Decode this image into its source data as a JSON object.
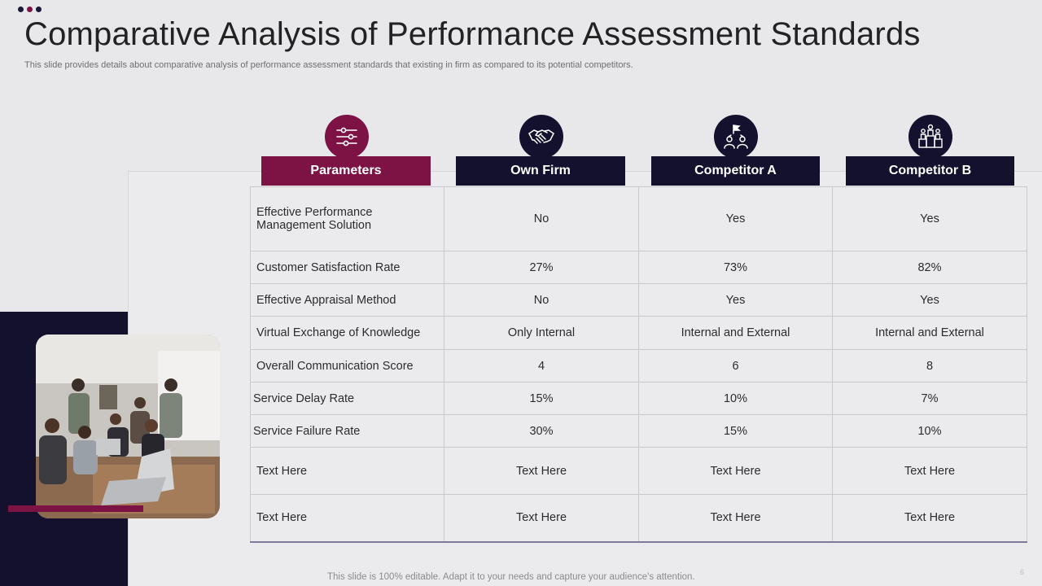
{
  "slide": {
    "title": "Comparative Analysis of Performance Assessment Standards",
    "subtitle": "This slide provides details about comparative analysis of performance assessment standards that existing in firm as compared to its potential competitors.",
    "footer": "This slide is 100% editable. Adapt it to your needs and capture your audience's attention.",
    "page_number": "6"
  },
  "columns": [
    {
      "label": "Parameters",
      "icon": "sliders-icon"
    },
    {
      "label": "Own Firm",
      "icon": "handshake-icon"
    },
    {
      "label": "Competitor A",
      "icon": "team-flag-icon"
    },
    {
      "label": "Competitor B",
      "icon": "podium-people-icon"
    }
  ],
  "rows": [
    {
      "cells": [
        "Effective Performance Management Solution",
        "No",
        "Yes",
        "Yes"
      ]
    },
    {
      "cells": [
        "Customer Satisfaction Rate",
        "27%",
        "73%",
        "82%"
      ]
    },
    {
      "cells": [
        "Effective Appraisal Method",
        "No",
        "Yes",
        "Yes"
      ]
    },
    {
      "cells": [
        "Virtual Exchange of Knowledge",
        "Only Internal",
        "Internal and External",
        "Internal and External"
      ]
    },
    {
      "cells": [
        "Overall Communication Score",
        "4",
        "6",
        "8"
      ]
    },
    {
      "cells": [
        "Service Delay Rate",
        "15%",
        "10%",
        "7%"
      ]
    },
    {
      "cells": [
        "Service Failure Rate",
        "30%",
        "15%",
        "10%"
      ]
    },
    {
      "cells": [
        "Text Here",
        "Text Here",
        "Text Here",
        "Text Here"
      ]
    },
    {
      "cells": [
        "Text Here",
        "Text Here",
        "Text Here",
        "Text Here"
      ]
    }
  ],
  "colors": {
    "navy": "#13112e",
    "maroon": "#7d1344",
    "background": "#e8e7ea"
  }
}
